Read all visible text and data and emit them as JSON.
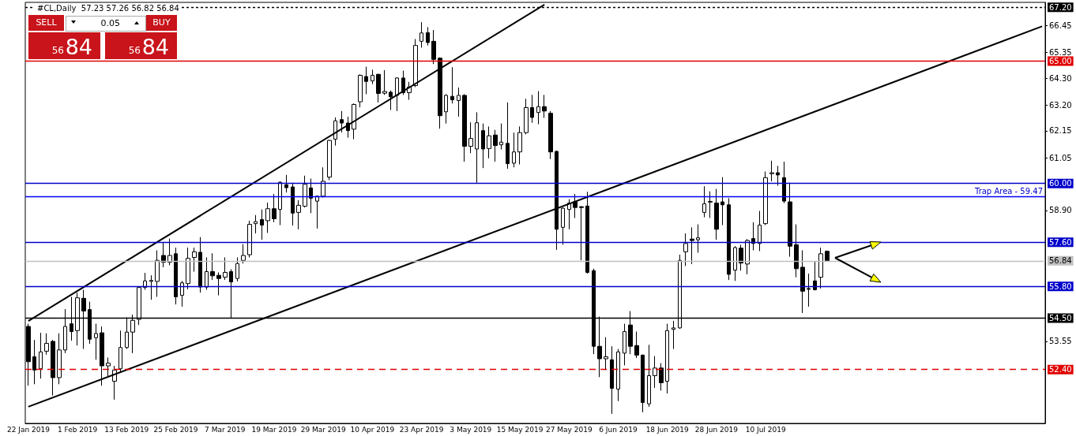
{
  "chart_data": {
    "type": "candlestick",
    "title": "#CL,Daily  57.23 57.26 56.82 56.84",
    "categories": [
      "22 Jan 2019",
      null,
      null,
      null,
      null,
      null,
      null,
      null,
      "1 Feb 2019",
      null,
      null,
      null,
      null,
      null,
      null,
      null,
      "13 Feb 2019",
      null,
      null,
      null,
      null,
      null,
      null,
      null,
      "25 Feb 2019",
      null,
      null,
      null,
      null,
      null,
      null,
      null,
      "7 Mar 2019",
      null,
      null,
      null,
      null,
      null,
      null,
      null,
      "19 Mar 2019",
      null,
      null,
      null,
      null,
      null,
      null,
      null,
      "29 Mar 2019",
      null,
      null,
      null,
      null,
      null,
      null,
      null,
      "10 Apr 2019",
      null,
      null,
      null,
      null,
      null,
      null,
      null,
      "23 Apr 2019",
      null,
      null,
      null,
      null,
      null,
      null,
      null,
      "3 May 2019",
      null,
      null,
      null,
      null,
      null,
      null,
      null,
      "15 May 2019",
      null,
      null,
      null,
      null,
      null,
      null,
      null,
      "27 May 2019",
      null,
      null,
      null,
      null,
      null,
      null,
      null,
      "6 Jun 2019",
      null,
      null,
      null,
      null,
      null,
      null,
      null,
      "18 Jun 2019",
      null,
      null,
      null,
      null,
      null,
      null,
      null,
      "28 Jun 2019",
      null,
      null,
      null,
      null,
      null,
      null,
      null,
      "10 Jul 2019",
      null,
      null,
      null,
      null,
      null,
      null,
      null,
      null,
      null,
      null,
      null,
      null,
      null,
      null,
      null,
      null,
      null,
      null,
      null,
      null,
      null,
      null,
      null,
      null,
      null,
      null,
      null,
      null,
      null,
      null,
      null,
      null,
      null,
      null,
      null,
      null,
      null,
      null,
      null,
      null,
      null,
      null,
      null,
      null,
      null
    ],
    "ohlc": [
      [
        54.16,
        54.27,
        51.74,
        52.72
      ],
      [
        52.92,
        53.61,
        51.8,
        52.38
      ],
      [
        52.43,
        53.9,
        52.03,
        53.12
      ],
      [
        53.15,
        53.88,
        53.01,
        53.47
      ],
      [
        53.55,
        53.61,
        51.34,
        52.07
      ],
      [
        52.07,
        53.88,
        51.8,
        53.2
      ],
      [
        53.2,
        54.87,
        53.07,
        54.16
      ],
      [
        54.27,
        55.37,
        53.58,
        53.95
      ],
      [
        53.99,
        55.54,
        53.38,
        55.33
      ],
      [
        55.31,
        55.66,
        53.24,
        54.79
      ],
      [
        54.85,
        55.17,
        53.45,
        53.64
      ],
      [
        53.7,
        54.27,
        52.8,
        53.87
      ],
      [
        53.9,
        54.16,
        51.74,
        52.55
      ],
      [
        52.55,
        52.89,
        52.09,
        52.66
      ],
      [
        51.92,
        52.55,
        51.17,
        52.38
      ],
      [
        52.43,
        53.99,
        52.32,
        53.3
      ],
      [
        53.3,
        54.53,
        53.24,
        53.93
      ],
      [
        53.93,
        54.64,
        53.07,
        54.41
      ],
      [
        54.45,
        55.79,
        54.22,
        55.75
      ],
      [
        55.75,
        56.35,
        55.66,
        56.02
      ],
      [
        56.0,
        56.25,
        55.25,
        56.04
      ],
      [
        56.0,
        57.27,
        55.37,
        56.86
      ],
      [
        57.06,
        57.61,
        56.58,
        56.78
      ],
      [
        56.78,
        57.75,
        56.66,
        57.06
      ],
      [
        57.13,
        57.38,
        55.06,
        55.37
      ],
      [
        55.43,
        56.02,
        54.97,
        55.94
      ],
      [
        55.91,
        57.38,
        55.68,
        56.94
      ],
      [
        56.98,
        57.38,
        56.4,
        57.21
      ],
      [
        57.19,
        57.81,
        55.54,
        55.77
      ],
      [
        55.77,
        56.98,
        55.66,
        56.4
      ],
      [
        56.4,
        57.15,
        56.06,
        56.23
      ],
      [
        56.25,
        56.37,
        55.43,
        56.12
      ],
      [
        56.17,
        56.98,
        56.06,
        56.37
      ],
      [
        56.4,
        56.5,
        54.5,
        55.98
      ],
      [
        56.12,
        56.98,
        56.0,
        56.73
      ],
      [
        56.86,
        57.52,
        56.73,
        57.06
      ],
      [
        57.09,
        58.48,
        56.98,
        58.33
      ],
      [
        58.36,
        58.71,
        57.96,
        58.44
      ],
      [
        58.53,
        58.94,
        57.7,
        58.3
      ],
      [
        58.48,
        59.22,
        57.98,
        58.97
      ],
      [
        58.97,
        59.57,
        58.42,
        58.56
      ],
      [
        58.94,
        60.09,
        58.3,
        60.05
      ],
      [
        59.95,
        60.35,
        59.63,
        59.83
      ],
      [
        59.86,
        60.03,
        58.28,
        58.79
      ],
      [
        58.82,
        59.32,
        58.13,
        59.11
      ],
      [
        59.07,
        60.32,
        59.02,
        59.97
      ],
      [
        59.82,
        60.2,
        58.79,
        59.4
      ],
      [
        59.28,
        59.51,
        58.16,
        59.48
      ],
      [
        59.48,
        60.66,
        59.43,
        60.09
      ],
      [
        60.26,
        61.78,
        60.14,
        61.76
      ],
      [
        61.81,
        62.7,
        61.55,
        62.56
      ],
      [
        62.61,
        62.96,
        62.08,
        62.47
      ],
      [
        62.47,
        62.73,
        61.87,
        62.16
      ],
      [
        62.22,
        63.27,
        61.81,
        63.23
      ],
      [
        63.34,
        64.46,
        63.11,
        64.42
      ],
      [
        64.37,
        64.77,
        63.65,
        64.17
      ],
      [
        64.19,
        64.65,
        64.06,
        64.42
      ],
      [
        64.46,
        64.48,
        63.31,
        63.68
      ],
      [
        63.69,
        64.63,
        63.62,
        63.76
      ],
      [
        63.73,
        63.8,
        63.0,
        63.54
      ],
      [
        63.6,
        64.34,
        62.96,
        64.31
      ],
      [
        64.31,
        64.61,
        63.62,
        63.71
      ],
      [
        63.71,
        64.15,
        63.42,
        63.94
      ],
      [
        64.0,
        65.9,
        63.94,
        65.64
      ],
      [
        65.81,
        66.59,
        65.55,
        66.15
      ],
      [
        66.16,
        66.39,
        65.64,
        65.76
      ],
      [
        65.81,
        66.27,
        64.88,
        65.07
      ],
      [
        65.12,
        65.15,
        62.24,
        62.77
      ],
      [
        62.93,
        63.65,
        62.45,
        63.6
      ],
      [
        63.56,
        64.75,
        63.27,
        63.42
      ],
      [
        63.39,
        63.92,
        62.73,
        63.6
      ],
      [
        63.6,
        63.65,
        60.89,
        61.52
      ],
      [
        61.52,
        62.5,
        61.24,
        61.84
      ],
      [
        61.41,
        62.91,
        60.03,
        62.48
      ],
      [
        62.16,
        62.45,
        60.63,
        61.41
      ],
      [
        61.43,
        62.33,
        61.03,
        61.95
      ],
      [
        61.98,
        62.19,
        60.89,
        61.55
      ],
      [
        61.58,
        62.45,
        61.39,
        61.69
      ],
      [
        61.64,
        63.31,
        60.6,
        60.81
      ],
      [
        60.83,
        62.08,
        60.66,
        61.29
      ],
      [
        61.29,
        62.33,
        60.78,
        62.08
      ],
      [
        62.08,
        63.46,
        62.01,
        63.1
      ],
      [
        63.1,
        63.62,
        62.48,
        62.7
      ],
      [
        62.9,
        63.77,
        62.42,
        63.14
      ],
      [
        63.14,
        63.62,
        62.68,
        62.96
      ],
      [
        62.87,
        62.96,
        61.0,
        61.29
      ],
      [
        61.31,
        61.35,
        57.29,
        58.13
      ],
      [
        58.21,
        59.02,
        57.5,
        58.99
      ],
      [
        58.94,
        59.36,
        58.13,
        59.2
      ],
      [
        59.25,
        59.57,
        58.59,
        59.02
      ],
      [
        59.05,
        59.08,
        56.86,
        59.02
      ],
      [
        59.08,
        59.66,
        56.32,
        56.37
      ],
      [
        56.44,
        56.52,
        53.03,
        53.35
      ],
      [
        53.35,
        54.56,
        52.09,
        52.84
      ],
      [
        52.84,
        53.72,
        52.38,
        52.92
      ],
      [
        52.8,
        53.35,
        50.59,
        51.63
      ],
      [
        51.6,
        53.24,
        51.11,
        53.12
      ],
      [
        53.07,
        54.27,
        52.57,
        53.95
      ],
      [
        54.22,
        54.79,
        53.03,
        53.35
      ],
      [
        53.38,
        53.95,
        52.87,
        52.99
      ],
      [
        52.99,
        53.01,
        50.65,
        51.05
      ],
      [
        51.0,
        53.41,
        50.88,
        52.15
      ],
      [
        52.15,
        52.95,
        51.65,
        52.46
      ],
      [
        52.46,
        52.66,
        51.54,
        51.86
      ],
      [
        51.92,
        54.27,
        51.42,
        53.99
      ],
      [
        54.04,
        54.39,
        53.24,
        54.1
      ],
      [
        54.1,
        57.09,
        54.07,
        56.86
      ],
      [
        57.21,
        57.96,
        56.63,
        57.55
      ],
      [
        57.73,
        58.21,
        56.71,
        57.67
      ],
      [
        57.7,
        58.33,
        57.17,
        57.78
      ],
      [
        58.82,
        59.89,
        58.62,
        59.17
      ],
      [
        59.24,
        59.68,
        58.59,
        59.27
      ],
      [
        59.2,
        59.78,
        57.7,
        58.13
      ],
      [
        59.25,
        60.26,
        58.3,
        59.13
      ],
      [
        59.13,
        59.4,
        56.06,
        56.29
      ],
      [
        56.46,
        57.44,
        56.02,
        57.38
      ],
      [
        57.36,
        57.5,
        56.44,
        56.75
      ],
      [
        56.71,
        57.73,
        56.29,
        57.67
      ],
      [
        57.75,
        58.42,
        57.27,
        57.55
      ],
      [
        57.55,
        58.88,
        57.24,
        58.3
      ],
      [
        58.36,
        60.49,
        58.3,
        60.24
      ],
      [
        60.4,
        60.93,
        60.09,
        60.44
      ],
      [
        60.44,
        60.72,
        59.91,
        60.35
      ],
      [
        60.24,
        60.89,
        59.2,
        59.28
      ],
      [
        59.25,
        60.03,
        57.01,
        57.44
      ],
      [
        57.5,
        58.33,
        56.17,
        56.52
      ],
      [
        56.58,
        57.27,
        54.71,
        55.6
      ],
      [
        55.71,
        56.32,
        54.97,
        55.68
      ],
      [
        56.02,
        56.83,
        55.63,
        55.66
      ],
      [
        56.17,
        57.38,
        55.71,
        57.13
      ],
      [
        57.23,
        57.26,
        56.82,
        56.84
      ],
      null,
      null,
      null,
      null,
      null,
      null,
      null,
      null,
      null,
      null,
      null,
      null,
      null,
      null,
      null,
      null,
      null,
      null,
      null,
      null,
      null,
      null,
      null,
      null,
      null,
      null,
      null,
      null,
      null,
      null,
      null,
      null,
      null,
      null,
      null
    ],
    "series": [
      {
        "type": "line",
        "color": "#000000",
        "values": [
          54.38,
          null,
          null,
          null,
          null,
          null,
          null,
          null,
          null,
          null,
          null,
          null,
          null,
          null,
          null,
          null,
          null,
          null,
          null,
          null,
          null,
          null,
          null,
          null,
          null,
          null,
          null,
          null,
          null,
          null,
          null,
          null,
          null,
          null,
          null,
          null,
          null,
          null,
          null,
          null,
          null,
          null,
          null,
          null,
          null,
          null,
          null,
          null,
          null,
          null,
          null,
          null,
          null,
          null,
          null,
          null,
          null,
          null,
          null,
          null,
          null,
          null,
          null,
          null,
          null,
          null,
          null,
          null,
          null,
          null,
          null,
          null,
          null,
          null,
          null,
          null,
          null,
          null,
          null,
          null,
          null,
          null,
          null,
          null,
          67.31,
          null,
          null,
          null,
          null,
          null,
          null,
          null,
          null,
          null,
          null,
          null,
          null,
          null,
          null,
          null,
          null,
          null,
          null,
          null,
          null,
          null,
          null,
          null,
          null,
          null,
          null,
          null,
          null,
          null,
          null,
          null,
          null,
          null,
          null,
          null,
          null,
          null,
          null,
          null,
          null,
          null,
          null,
          null,
          null,
          null,
          null,
          null,
          null,
          null,
          null,
          null,
          null,
          null,
          null,
          null,
          null,
          null,
          null,
          null,
          null,
          null,
          null,
          null,
          null,
          null,
          null,
          null,
          null,
          null,
          null,
          null,
          null,
          null,
          null,
          null,
          null,
          null,
          null,
          null,
          null,
          null
        ]
      },
      {
        "type": "line",
        "color": "#000000",
        "values": [
          50.88,
          null,
          null,
          null,
          null,
          null,
          null,
          null,
          null,
          null,
          null,
          null,
          null,
          null,
          null,
          null,
          null,
          null,
          null,
          null,
          null,
          null,
          null,
          null,
          null,
          null,
          null,
          null,
          null,
          null,
          null,
          null,
          null,
          null,
          null,
          null,
          null,
          null,
          null,
          null,
          null,
          null,
          null,
          null,
          null,
          null,
          null,
          null,
          null,
          null,
          null,
          null,
          null,
          null,
          null,
          null,
          null,
          null,
          null,
          null,
          null,
          null,
          null,
          null,
          null,
          null,
          null,
          null,
          null,
          null,
          null,
          null,
          null,
          null,
          null,
          null,
          null,
          null,
          null,
          null,
          null,
          null,
          null,
          null,
          null,
          null,
          null,
          null,
          null,
          null,
          null,
          null,
          null,
          null,
          null,
          null,
          null,
          null,
          null,
          null,
          null,
          null,
          null,
          null,
          null,
          null,
          null,
          null,
          null,
          null,
          null,
          null,
          null,
          null,
          null,
          null,
          null,
          null,
          null,
          null,
          null,
          null,
          null,
          null,
          null,
          null,
          null,
          null,
          null,
          null,
          null,
          null,
          null,
          null,
          null,
          null,
          null,
          null,
          null,
          null,
          null,
          null,
          null,
          null,
          null,
          null,
          null,
          null,
          null,
          null,
          null,
          null,
          null,
          null,
          null,
          null,
          null,
          null,
          null,
          null,
          null,
          null,
          null,
          null,
          null,
          66.42
        ]
      }
    ],
    "ylim": [
      50.2,
      67.4
    ],
    "yticks": [
      {
        "value": 53.55,
        "label": "53.55"
      },
      {
        "value": 58.9,
        "label": "58.90"
      },
      {
        "value": 61.05,
        "label": "61.05"
      },
      {
        "value": 62.15,
        "label": "62.15"
      },
      {
        "value": 63.2,
        "label": "63.20"
      },
      {
        "value": 64.3,
        "label": "64.30"
      },
      {
        "value": 65.35,
        "label": "65.35"
      },
      {
        "value": 66.45,
        "label": "66.45"
      }
    ],
    "ref_lines": [
      {
        "axis": "y",
        "value": 67.2,
        "label": "67.20",
        "color": "#000000",
        "line_style": "dotted"
      },
      {
        "axis": "y",
        "value": 65.0,
        "label": "65.00",
        "color": "#e00000",
        "line_style": "solid"
      },
      {
        "axis": "y",
        "value": 60.0,
        "label": "60.00",
        "color": "#0000cc",
        "line_style": "solid"
      },
      {
        "axis": "y",
        "value": 59.47,
        "label": null,
        "color": "#0000ff",
        "line_style": "solid"
      },
      {
        "axis": "y",
        "value": 57.6,
        "label": "57.60",
        "color": "#0000cc",
        "line_style": "solid"
      },
      {
        "axis": "y",
        "value": 56.84,
        "label": "56.84",
        "color": "#c0c0c0",
        "line_style": "solid"
      },
      {
        "axis": "y",
        "value": 55.8,
        "label": "55.80",
        "color": "#0000cc",
        "line_style": "solid"
      },
      {
        "axis": "y",
        "value": 54.5,
        "label": "54.50",
        "color": "#000000",
        "line_style": "solid"
      },
      {
        "axis": "y",
        "value": 52.4,
        "label": "52.40",
        "color": "#e00000",
        "line_style": "dashed"
      }
    ],
    "annotations": [
      {
        "text": "Trap Area - 59.47",
        "y": 59.47
      },
      "SELL",
      "0.05",
      "BUY",
      "56",
      "84",
      "56",
      "84"
    ],
    "marker": "none",
    "grid": false
  }
}
